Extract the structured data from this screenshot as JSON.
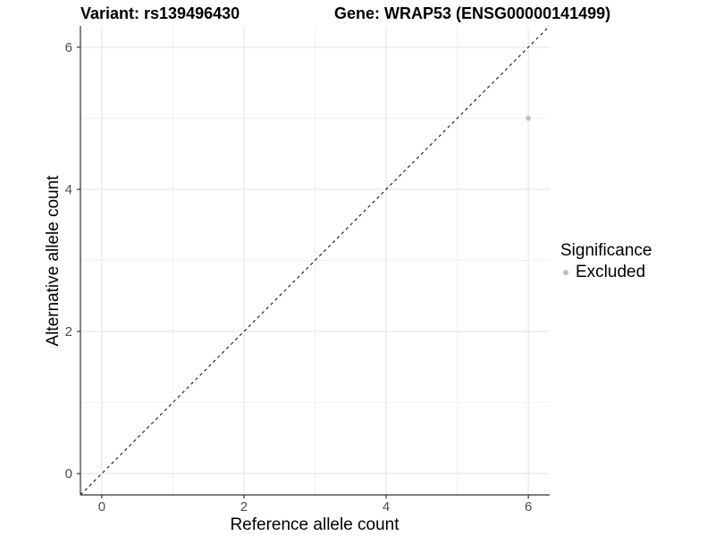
{
  "header": {
    "variant_title": "Variant: rs139496430",
    "gene_title": "Gene: WRAP53 (ENSG00000141499)"
  },
  "chart_data": {
    "type": "scatter",
    "titles": [
      "Variant: rs139496430",
      "Gene: WRAP53 (ENSG00000141499)"
    ],
    "xlabel": "Reference allele count",
    "ylabel": "Alternative allele count",
    "xlim": [
      -0.3,
      6.3
    ],
    "ylim": [
      -0.3,
      6.3
    ],
    "x_major_ticks": [
      0,
      2,
      4,
      6
    ],
    "y_major_ticks": [
      0,
      2,
      4,
      6
    ],
    "x_minor_ticks": [
      1,
      3,
      5
    ],
    "y_minor_ticks": [
      1,
      3,
      5
    ],
    "grid": "major+minor",
    "identity_line": {
      "slope": 1,
      "intercept": 0,
      "style": "dashed",
      "color": "#000000"
    },
    "series": [
      {
        "name": "Excluded",
        "color": "#bebebe",
        "point_radius": 2.8,
        "points": [
          {
            "x": 6,
            "y": 5
          }
        ]
      }
    ],
    "legend": {
      "title": "Significance",
      "position": "right",
      "entries": [
        {
          "label": "Excluded",
          "color": "#bebebe",
          "marker": "dot"
        }
      ]
    },
    "style": {
      "background": "#ffffff",
      "grid_major_color": "#e3e3e3",
      "grid_minor_color": "#f0f0f0",
      "axis_line_color": "#333333",
      "tick_color": "#333333",
      "tick_label_color": "#4d4d4d",
      "tick_label_size": 15
    }
  }
}
